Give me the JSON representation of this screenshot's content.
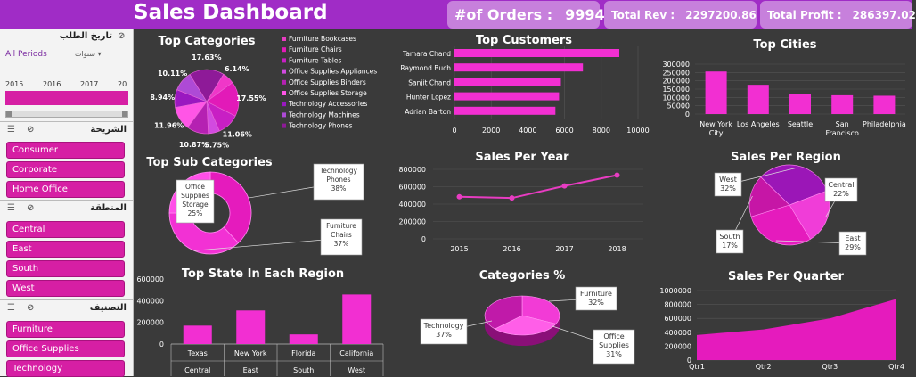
{
  "header": {
    "title": "Sales Dashboard",
    "orders_label": "#of Orders :",
    "orders_value": "9994",
    "rev_label": "Total Rev :",
    "rev_value": "2297200.86",
    "profit_label": "Total Profit :",
    "profit_value": "286397.02"
  },
  "colors": {
    "header": "#a02cc6",
    "accent": "#ff2fd0",
    "slicer_button": "#d61fa4",
    "background": "#3a3a3a"
  },
  "slicers": {
    "timeline": {
      "title": "تاريخ الطلب",
      "period": "All Periods",
      "unit": "سنوات",
      "years": [
        "2015",
        "2016",
        "2017",
        "20"
      ]
    },
    "segment": {
      "title": "الشريحة",
      "items": [
        "Consumer",
        "Corporate",
        "Home Office"
      ]
    },
    "region": {
      "title": "المنطقة",
      "items": [
        "Central",
        "East",
        "South",
        "West"
      ]
    },
    "category": {
      "title": "التصنيف",
      "items": [
        "Furniture",
        "Office Supplies",
        "Technology"
      ]
    }
  },
  "chart_data": [
    {
      "id": "top_categories",
      "type": "pie",
      "title": "Top Categories",
      "legend": "right",
      "labels": [
        "Furniture Bookcases",
        "Furniture Chairs",
        "Furniture Tables",
        "Office Supplies Appliances",
        "Office Supplies Binders",
        "Office Supplies Storage",
        "Technology Accessories",
        "Technology Machines",
        "Technology Phones"
      ],
      "values": [
        6.14,
        17.55,
        11.06,
        5.75,
        10.87,
        11.96,
        8.94,
        10.11,
        17.63
      ],
      "value_labels": [
        "6.14%",
        "17.55%",
        "11.06%",
        "5.75%",
        "10.87%",
        "11.96%",
        "8.94%",
        "10.11%",
        "17.63%"
      ]
    },
    {
      "id": "top_customers",
      "type": "bar",
      "orientation": "horizontal",
      "title": "Top Customers",
      "categories": [
        "Tamara Chand",
        "Raymond Buch",
        "Sanjit Chand",
        "Hunter Lopez",
        "Adrian Barton"
      ],
      "values": [
        8981,
        7000,
        5800,
        5700,
        5500
      ],
      "xlim": [
        0,
        10000
      ],
      "xticks": [
        "0",
        "2000",
        "4000",
        "6000",
        "8000",
        "10000"
      ],
      "grid": true
    },
    {
      "id": "top_cities",
      "type": "bar",
      "title": "Top Cities",
      "categories": [
        "New York City",
        "Los Angeles",
        "Seattle",
        "San Francisco",
        "Philadelphia"
      ],
      "values": [
        256000,
        176000,
        120000,
        113000,
        110000
      ],
      "ylim": [
        0,
        300000
      ],
      "yticks": [
        "0",
        "50000",
        "100000",
        "150000",
        "200000",
        "250000",
        "300000"
      ],
      "grid": true
    },
    {
      "id": "top_sub_categories",
      "type": "pie",
      "donut": true,
      "title": "Top Sub Categories",
      "labels": [
        "Technology Phones",
        "Furniture Chairs",
        "Office Supplies Storage"
      ],
      "values": [
        38,
        37,
        25
      ],
      "value_labels": [
        "38%",
        "37%",
        "25%"
      ]
    },
    {
      "id": "sales_per_year",
      "type": "line",
      "title": "Sales Per Year",
      "x": [
        "2015",
        "2016",
        "2017",
        "2018"
      ],
      "values": [
        484000,
        470000,
        609000,
        733000
      ],
      "ylim": [
        0,
        800000
      ],
      "yticks": [
        "0",
        "200000",
        "400000",
        "600000",
        "800000"
      ],
      "grid": true
    },
    {
      "id": "sales_per_region",
      "type": "pie",
      "title": "Sales Per Region",
      "labels": [
        "West",
        "Central",
        "East",
        "South"
      ],
      "values": [
        32,
        22,
        29,
        17
      ],
      "value_labels": [
        "32%",
        "22%",
        "29%",
        "17%"
      ]
    },
    {
      "id": "top_state_each_region",
      "type": "bar",
      "title": "Top State In Each Region",
      "categories": [
        "Texas",
        "New York",
        "Florida",
        "California"
      ],
      "groups": [
        "Central",
        "East",
        "South",
        "West"
      ],
      "values": [
        170000,
        310000,
        89000,
        457000
      ],
      "ylim": [
        0,
        600000
      ],
      "yticks": [
        "0",
        "200000",
        "400000",
        "600000"
      ]
    },
    {
      "id": "categories_pct",
      "type": "pie",
      "title": "Categories %",
      "labels": [
        "Furniture",
        "Office Supplies",
        "Technology"
      ],
      "values": [
        32,
        31,
        37
      ],
      "value_labels": [
        "32%",
        "31%",
        "37%"
      ]
    },
    {
      "id": "sales_per_quarter",
      "type": "area",
      "title": "Sales Per Quarter",
      "x": [
        "Qtr1",
        "Qtr2",
        "Qtr3",
        "Qtr4"
      ],
      "values": [
        360000,
        440000,
        600000,
        880000
      ],
      "ylim": [
        0,
        1000000
      ],
      "yticks": [
        "0",
        "200000",
        "400000",
        "600000",
        "800000",
        "1000000"
      ],
      "grid": true
    }
  ]
}
